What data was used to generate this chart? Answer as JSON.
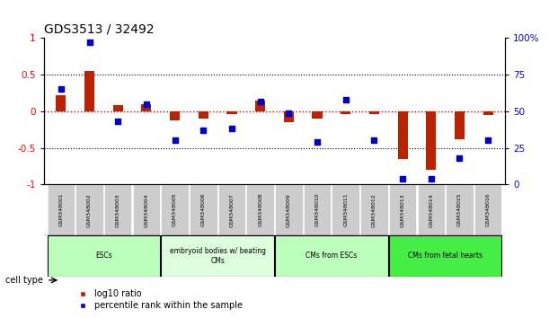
{
  "title": "GDS3513 / 32492",
  "samples": [
    "GSM348001",
    "GSM348002",
    "GSM348003",
    "GSM348004",
    "GSM348005",
    "GSM348006",
    "GSM348007",
    "GSM348008",
    "GSM348009",
    "GSM348010",
    "GSM348011",
    "GSM348012",
    "GSM348013",
    "GSM348014",
    "GSM348015",
    "GSM348016"
  ],
  "log10_ratio": [
    0.22,
    0.55,
    0.08,
    0.1,
    -0.12,
    -0.1,
    -0.04,
    0.15,
    -0.15,
    -0.1,
    -0.04,
    -0.04,
    -0.65,
    -0.8,
    -0.38,
    -0.05
  ],
  "percentile_rank": [
    65,
    97,
    43,
    55,
    30,
    37,
    38,
    57,
    49,
    29,
    58,
    30,
    4,
    4,
    18,
    30
  ],
  "cell_types": [
    {
      "label": "ESCs",
      "start": 0,
      "end": 4,
      "color": "#bbffbb"
    },
    {
      "label": "embryoid bodies w/ beating\nCMs",
      "start": 4,
      "end": 8,
      "color": "#ddffdd"
    },
    {
      "label": "CMs from ESCs",
      "start": 8,
      "end": 12,
      "color": "#bbffbb"
    },
    {
      "label": "CMs from fetal hearts",
      "start": 12,
      "end": 16,
      "color": "#44ee44"
    }
  ],
  "ylim_left": [
    -1,
    1
  ],
  "ylim_right": [
    0,
    100
  ],
  "yticks_left": [
    -1,
    -0.5,
    0,
    0.5,
    1
  ],
  "yticks_right": [
    0,
    25,
    50,
    75,
    100
  ],
  "bar_color": "#bb2200",
  "dot_color": "#0000cc",
  "zero_line_color": "#cc0000",
  "hline_color": "black",
  "sample_bg_color": "#cccccc",
  "legend_bar_label": "log10 ratio",
  "legend_dot_label": "percentile rank within the sample",
  "bar_width": 0.35
}
